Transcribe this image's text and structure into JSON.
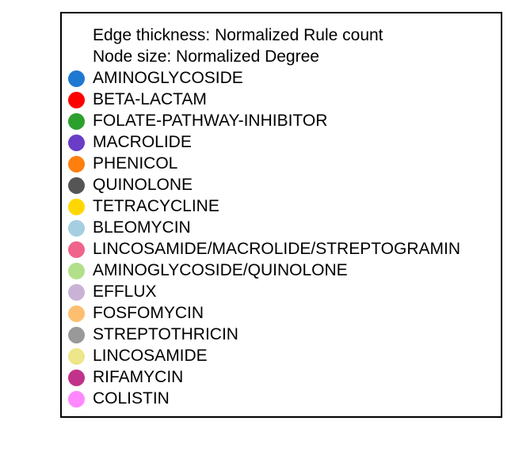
{
  "legend": {
    "headers": [
      "Edge thickness: Normalized Rule count",
      "Node size: Normalized Degree"
    ],
    "items": [
      {
        "label": "AMINOGLYCOSIDE",
        "color": "#1f78d1"
      },
      {
        "label": "BETA-LACTAM",
        "color": "#ff0000"
      },
      {
        "label": "FOLATE-PATHWAY-INHIBITOR",
        "color": "#2ca02c"
      },
      {
        "label": "MACROLIDE",
        "color": "#6a3dc7"
      },
      {
        "label": "PHENICOL",
        "color": "#ff7f0e"
      },
      {
        "label": "QUINOLONE",
        "color": "#555555"
      },
      {
        "label": "TETRACYCLINE",
        "color": "#ffd700"
      },
      {
        "label": "BLEOMYCIN",
        "color": "#a6cee3"
      },
      {
        "label": "LINCOSAMIDE/MACROLIDE/STREPTOGRAMIN",
        "color": "#f0648c"
      },
      {
        "label": "AMINOGLYCOSIDE/QUINOLONE",
        "color": "#b2df8a"
      },
      {
        "label": "EFFLUX",
        "color": "#cab2d6"
      },
      {
        "label": "FOSFOMYCIN",
        "color": "#fdbf6f"
      },
      {
        "label": "STREPTOTHRICIN",
        "color": "#999999"
      },
      {
        "label": "LINCOSAMIDE",
        "color": "#ede68a"
      },
      {
        "label": "RIFAMYCIN",
        "color": "#c1328a"
      },
      {
        "label": "COLISTIN",
        "color": "#ff88ff"
      }
    ]
  }
}
